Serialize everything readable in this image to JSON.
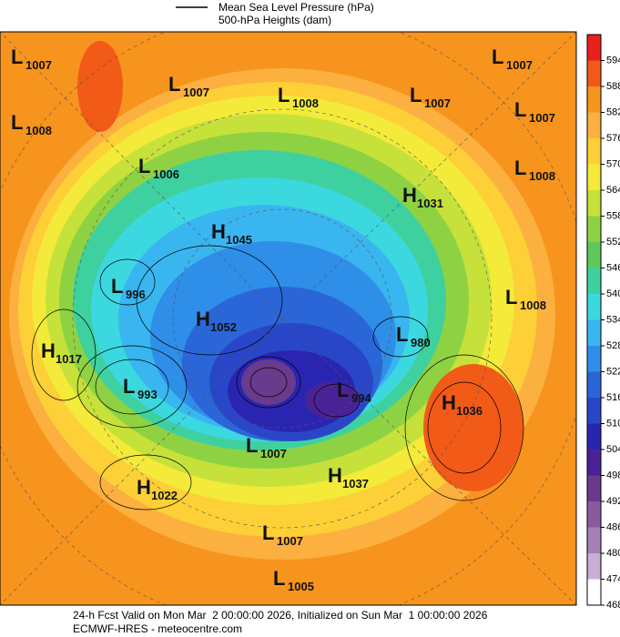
{
  "legend": {
    "line_label": "Mean Sea Level Pressure (hPa)",
    "shading_label": "500-hPa Heights (dam)"
  },
  "colorbar": {
    "ticks": [
      594,
      588,
      582,
      576,
      570,
      564,
      558,
      552,
      546,
      540,
      534,
      528,
      522,
      516,
      510,
      504,
      498,
      492,
      486,
      480,
      474,
      468
    ],
    "colors": [
      "#e8201c",
      "#f25a17",
      "#f7941d",
      "#fbb040",
      "#fcd036",
      "#f4ea3a",
      "#c6e13a",
      "#8ed243",
      "#5ec85a",
      "#3fd0a0",
      "#3cd8e0",
      "#39b6f0",
      "#2f8ee8",
      "#2a66d8",
      "#2a46c8",
      "#2a25b0",
      "#4b2296",
      "#6a3a8c",
      "#8a5a9e",
      "#a480b6",
      "#c6aed4",
      "#ffffff"
    ]
  },
  "centers": [
    {
      "type": "L",
      "value": "1007"
    },
    {
      "type": "L",
      "value": "1007"
    },
    {
      "type": "L",
      "value": "1008"
    },
    {
      "type": "L",
      "value": "1007"
    },
    {
      "type": "L",
      "value": "1007"
    },
    {
      "type": "L",
      "value": "1007"
    },
    {
      "type": "L",
      "value": "1008"
    },
    {
      "type": "L",
      "value": "1006"
    },
    {
      "type": "L",
      "value": "1008"
    },
    {
      "type": "H",
      "value": "1031"
    },
    {
      "type": "H",
      "value": "1045"
    },
    {
      "type": "L",
      "value": "996"
    },
    {
      "type": "L",
      "value": "1008"
    },
    {
      "type": "H",
      "value": "1052"
    },
    {
      "type": "L",
      "value": "980"
    },
    {
      "type": "H",
      "value": "1017"
    },
    {
      "type": "L",
      "value": "993"
    },
    {
      "type": "L",
      "value": "994"
    },
    {
      "type": "H",
      "value": "1036"
    },
    {
      "type": "L",
      "value": "1007"
    },
    {
      "type": "H",
      "value": "1037"
    },
    {
      "type": "H",
      "value": "1022"
    },
    {
      "type": "L",
      "value": "1007"
    },
    {
      "type": "L",
      "value": "1005"
    }
  ],
  "footer": {
    "line1": "24-h Fcst Valid on Mon Mar  2 00:00:00 2026, Initialized on Sun Mar  1 00:00:00 2026",
    "line2": "ECMWF-HRES - meteocentre.com"
  }
}
